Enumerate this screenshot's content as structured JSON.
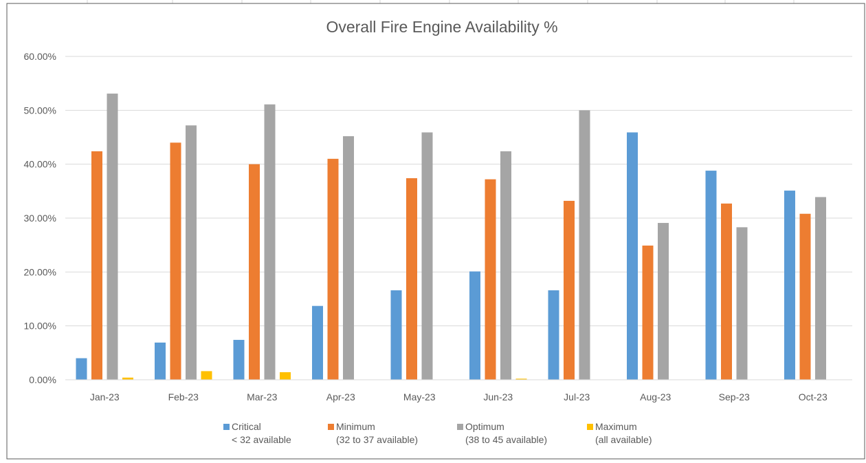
{
  "chart_data": {
    "type": "bar",
    "title": "Overall Fire Engine Availability %",
    "xlabel": "",
    "ylabel": "",
    "ylim": [
      0,
      60
    ],
    "yticks": [
      "0.00%",
      "10.00%",
      "20.00%",
      "30.00%",
      "40.00%",
      "50.00%",
      "60.00%"
    ],
    "grid": true,
    "legend_position": "bottom",
    "categories": [
      "Jan-23",
      "Feb-23",
      "Mar-23",
      "Apr-23",
      "May-23",
      "Jun-23",
      "Jul-23",
      "Aug-23",
      "Sep-23",
      "Oct-23"
    ],
    "series": [
      {
        "name": "Critical",
        "sublabel": "< 32 available",
        "color": "#5B9BD5",
        "values": [
          4.0,
          6.9,
          7.4,
          13.7,
          16.6,
          20.1,
          16.6,
          45.9,
          38.8,
          35.1
        ]
      },
      {
        "name": "Minimum",
        "sublabel": "(32 to 37 available)",
        "color": "#ED7D31",
        "values": [
          42.4,
          44.0,
          40.0,
          41.0,
          37.4,
          37.2,
          33.2,
          24.9,
          32.7,
          30.8
        ]
      },
      {
        "name": "Optimum",
        "sublabel": "(38 to 45 available)",
        "color": "#A5A5A5",
        "values": [
          53.1,
          47.2,
          51.1,
          45.2,
          45.9,
          42.4,
          50.0,
          29.1,
          28.3,
          33.9
        ]
      },
      {
        "name": "Maximum",
        "sublabel": "(all available)",
        "color": "#FFC000",
        "values": [
          0.4,
          1.6,
          1.4,
          0,
          0,
          0.2,
          0,
          0,
          0,
          0
        ]
      }
    ]
  }
}
